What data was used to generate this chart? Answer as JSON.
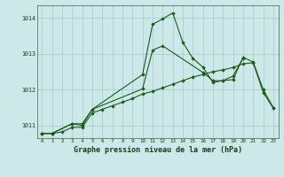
{
  "title": "Graphe pression niveau de la mer (hPa)",
  "background_color": "#cce8e8",
  "grid_color": "#a8c8c8",
  "line_color": "#1a5c1a",
  "xlim": [
    -0.5,
    23.5
  ],
  "ylim": [
    1010.65,
    1014.35
  ],
  "yticks": [
    1011,
    1012,
    1013,
    1014
  ],
  "line1_x": [
    0,
    1,
    3,
    4,
    5,
    10,
    11,
    12,
    13,
    14,
    15,
    16,
    17,
    18,
    19,
    20,
    21,
    22,
    23
  ],
  "line1_y": [
    1010.78,
    1010.78,
    1011.05,
    1011.05,
    1011.45,
    1012.42,
    1013.82,
    1013.97,
    1014.14,
    1013.32,
    1012.87,
    1012.63,
    1012.2,
    1012.25,
    1012.28,
    1012.9,
    1012.77,
    1012.0,
    1011.5
  ],
  "line2_x": [
    0,
    1,
    3,
    4,
    5,
    10,
    11,
    12,
    16,
    17,
    18,
    19,
    20
  ],
  "line2_y": [
    1010.78,
    1010.78,
    1011.05,
    1011.0,
    1011.45,
    1012.02,
    1013.1,
    1013.22,
    1012.48,
    1012.25,
    1012.25,
    1012.38,
    1012.88
  ],
  "line3_x": [
    0,
    1,
    2,
    3,
    4,
    5,
    6,
    7,
    8,
    9,
    10,
    11,
    12,
    13,
    14,
    15,
    16,
    17,
    18,
    19,
    20,
    21,
    22,
    23
  ],
  "line3_y": [
    1010.78,
    1010.78,
    1010.82,
    1010.95,
    1010.95,
    1011.35,
    1011.45,
    1011.55,
    1011.65,
    1011.75,
    1011.88,
    1011.95,
    1012.05,
    1012.15,
    1012.25,
    1012.35,
    1012.42,
    1012.5,
    1012.55,
    1012.62,
    1012.72,
    1012.75,
    1011.92,
    1011.48
  ]
}
